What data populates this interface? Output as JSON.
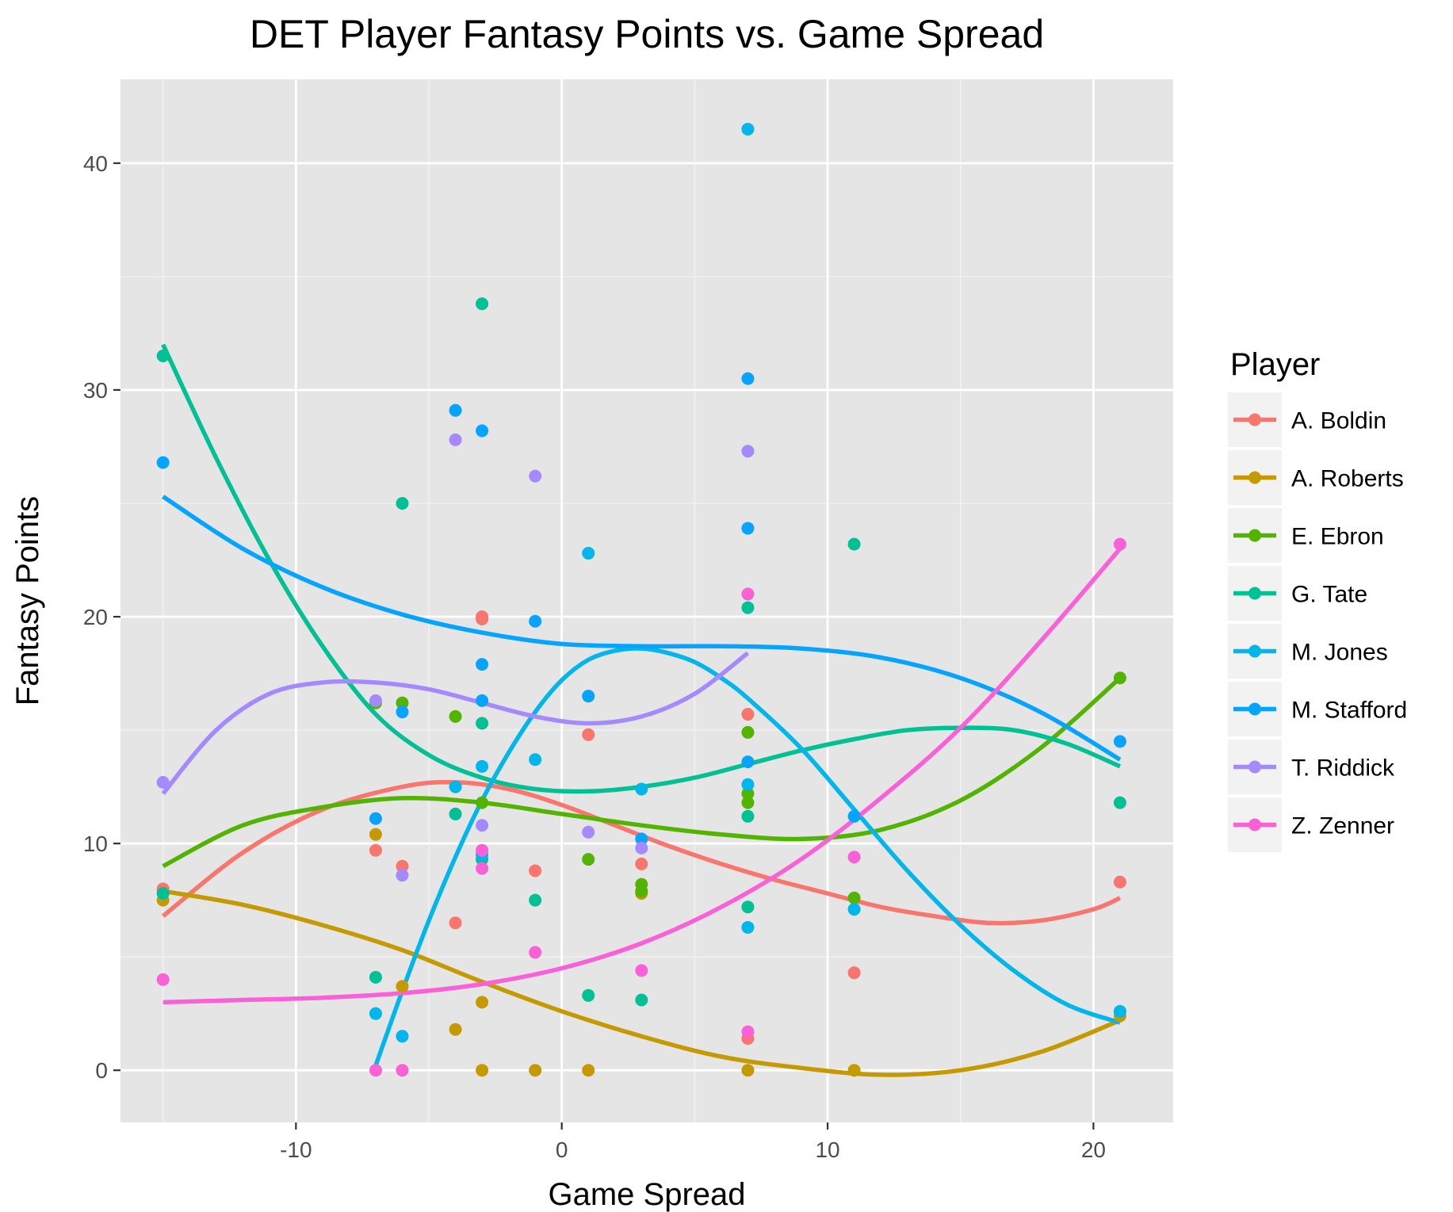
{
  "chart_data": {
    "type": "scatter",
    "title": "DET Player Fantasy Points vs. Game Spread",
    "xlabel": "Game Spread",
    "ylabel": "Fantasy Points",
    "xlim": [
      -16.6,
      23
    ],
    "ylim": [
      -2.3,
      43.7
    ],
    "x_ticks": [
      -10,
      0,
      10,
      20
    ],
    "y_ticks": [
      0,
      10,
      20,
      30,
      40
    ],
    "x_tick_labels": [
      "-10",
      "0",
      "10",
      "20"
    ],
    "y_tick_labels": [
      "0",
      "10",
      "20",
      "30",
      "40"
    ],
    "grid": true,
    "panel_background": "#E5E5E5",
    "legend": {
      "title": "Player",
      "position": "right"
    },
    "series": [
      {
        "name": "A. Boldin",
        "color": "#F8766D",
        "points": [
          [
            -15,
            8.0
          ],
          [
            -7,
            9.7
          ],
          [
            -6,
            9.0
          ],
          [
            -4,
            6.5
          ],
          [
            -3,
            20.0
          ],
          [
            -3,
            19.9
          ],
          [
            -1,
            8.8
          ],
          [
            1,
            14.8
          ],
          [
            3,
            9.1
          ],
          [
            7,
            15.7
          ],
          [
            7,
            1.4
          ],
          [
            11,
            4.3
          ],
          [
            21,
            8.3
          ]
        ],
        "trend": [
          [
            -15,
            6.8
          ],
          [
            -12,
            9.6
          ],
          [
            -9,
            11.5
          ],
          [
            -6,
            12.5
          ],
          [
            -4,
            12.7
          ],
          [
            -2,
            12.4
          ],
          [
            0,
            11.7
          ],
          [
            2,
            10.8
          ],
          [
            4,
            9.9
          ],
          [
            6,
            9.1
          ],
          [
            8,
            8.4
          ],
          [
            10,
            7.8
          ],
          [
            12,
            7.2
          ],
          [
            14,
            6.8
          ],
          [
            16,
            6.5
          ],
          [
            18,
            6.6
          ],
          [
            20,
            7.1
          ],
          [
            21,
            7.6
          ]
        ]
      },
      {
        "name": "A. Roberts",
        "color": "#C49A00",
        "points": [
          [
            -15,
            7.5
          ],
          [
            -7,
            10.4
          ],
          [
            -6,
            3.7
          ],
          [
            -4,
            1.8
          ],
          [
            -3,
            3.0
          ],
          [
            -3,
            0.0
          ],
          [
            -1,
            0.0
          ],
          [
            1,
            0.0
          ],
          [
            3,
            7.8
          ],
          [
            7,
            0.0
          ],
          [
            11,
            0.0
          ],
          [
            21,
            2.4
          ]
        ],
        "trend": [
          [
            -15,
            7.9
          ],
          [
            -12,
            7.3
          ],
          [
            -9,
            6.4
          ],
          [
            -6,
            5.3
          ],
          [
            -3,
            3.9
          ],
          [
            0,
            2.6
          ],
          [
            3,
            1.5
          ],
          [
            6,
            0.6
          ],
          [
            9,
            0.1
          ],
          [
            12,
            -0.2
          ],
          [
            15,
            0.0
          ],
          [
            18,
            0.8
          ],
          [
            21,
            2.2
          ]
        ]
      },
      {
        "name": "E. Ebron",
        "color": "#53B400",
        "points": [
          [
            -7,
            16.2
          ],
          [
            -6,
            16.2
          ],
          [
            -4,
            15.6
          ],
          [
            -3,
            11.8
          ],
          [
            1,
            9.3
          ],
          [
            3,
            8.2
          ],
          [
            3,
            7.9
          ],
          [
            7,
            14.9
          ],
          [
            7,
            12.2
          ],
          [
            7,
            11.8
          ],
          [
            11,
            7.6
          ],
          [
            21,
            17.3
          ]
        ],
        "trend": [
          [
            -15,
            9.0
          ],
          [
            -12,
            10.8
          ],
          [
            -9,
            11.6
          ],
          [
            -6,
            12.0
          ],
          [
            -3,
            11.8
          ],
          [
            0,
            11.3
          ],
          [
            3,
            10.8
          ],
          [
            6,
            10.4
          ],
          [
            9,
            10.2
          ],
          [
            12,
            10.6
          ],
          [
            15,
            11.9
          ],
          [
            18,
            14.2
          ],
          [
            21,
            17.3
          ]
        ]
      },
      {
        "name": "G. Tate",
        "color": "#00C094",
        "points": [
          [
            -15,
            31.5
          ],
          [
            -15,
            7.8
          ],
          [
            -7,
            4.1
          ],
          [
            -6,
            25.0
          ],
          [
            -4,
            11.3
          ],
          [
            -3,
            33.8
          ],
          [
            -3,
            15.3
          ],
          [
            -3,
            9.3
          ],
          [
            -1,
            7.5
          ],
          [
            1,
            3.3
          ],
          [
            3,
            3.1
          ],
          [
            7,
            20.4
          ],
          [
            7,
            11.2
          ],
          [
            7,
            7.2
          ],
          [
            11,
            23.2
          ],
          [
            21,
            11.8
          ]
        ],
        "trend": [
          [
            -15,
            32.0
          ],
          [
            -13,
            27.0
          ],
          [
            -11,
            22.5
          ],
          [
            -9,
            18.7
          ],
          [
            -7,
            15.7
          ],
          [
            -5,
            13.9
          ],
          [
            -3,
            12.9
          ],
          [
            -1,
            12.4
          ],
          [
            1,
            12.3
          ],
          [
            3,
            12.5
          ],
          [
            5,
            12.9
          ],
          [
            7,
            13.5
          ],
          [
            9,
            14.1
          ],
          [
            11,
            14.6
          ],
          [
            13,
            15.0
          ],
          [
            15,
            15.1
          ],
          [
            17,
            15.0
          ],
          [
            19,
            14.4
          ],
          [
            21,
            13.4
          ]
        ]
      },
      {
        "name": "M. Jones",
        "color": "#00B6EB",
        "points": [
          [
            -7,
            2.5
          ],
          [
            -6,
            1.5
          ],
          [
            -4,
            12.5
          ],
          [
            -3,
            13.4
          ],
          [
            -3,
            9.5
          ],
          [
            -1,
            13.7
          ],
          [
            1,
            22.8
          ],
          [
            3,
            12.4
          ],
          [
            7,
            41.5
          ],
          [
            7,
            12.6
          ],
          [
            7,
            6.3
          ],
          [
            11,
            7.1
          ],
          [
            21,
            2.6
          ]
        ],
        "trend": [
          [
            -7,
            0.2
          ],
          [
            -6,
            3.5
          ],
          [
            -5,
            6.6
          ],
          [
            -4,
            9.4
          ],
          [
            -3,
            11.9
          ],
          [
            -2,
            14.0
          ],
          [
            -1,
            15.8
          ],
          [
            0,
            17.2
          ],
          [
            1,
            18.1
          ],
          [
            2,
            18.5
          ],
          [
            3,
            18.6
          ],
          [
            4,
            18.4
          ],
          [
            5,
            18.0
          ],
          [
            6,
            17.3
          ],
          [
            7,
            16.4
          ],
          [
            9,
            14.2
          ],
          [
            11,
            11.5
          ],
          [
            13,
            8.8
          ],
          [
            15,
            6.4
          ],
          [
            17,
            4.4
          ],
          [
            19,
            2.9
          ],
          [
            21,
            2.1
          ]
        ]
      },
      {
        "name": "M. Stafford",
        "color": "#06A4FF",
        "points": [
          [
            -15,
            26.8
          ],
          [
            -7,
            11.1
          ],
          [
            -6,
            15.8
          ],
          [
            -4,
            29.1
          ],
          [
            -3,
            28.2
          ],
          [
            -3,
            17.9
          ],
          [
            -3,
            16.3
          ],
          [
            -1,
            19.8
          ],
          [
            1,
            16.5
          ],
          [
            3,
            10.2
          ],
          [
            7,
            30.5
          ],
          [
            7,
            23.9
          ],
          [
            7,
            13.6
          ],
          [
            11,
            11.2
          ],
          [
            21,
            14.5
          ]
        ],
        "trend": [
          [
            -15,
            25.3
          ],
          [
            -12,
            23.0
          ],
          [
            -9,
            21.3
          ],
          [
            -6,
            20.1
          ],
          [
            -3,
            19.3
          ],
          [
            0,
            18.8
          ],
          [
            3,
            18.7
          ],
          [
            6,
            18.7
          ],
          [
            9,
            18.6
          ],
          [
            12,
            18.2
          ],
          [
            15,
            17.3
          ],
          [
            18,
            15.8
          ],
          [
            21,
            13.7
          ]
        ]
      },
      {
        "name": "T. Riddick",
        "color": "#A58AFF",
        "points": [
          [
            -15,
            12.7
          ],
          [
            -7,
            16.3
          ],
          [
            -6,
            8.6
          ],
          [
            -4,
            27.8
          ],
          [
            -3,
            10.8
          ],
          [
            -1,
            26.2
          ],
          [
            1,
            10.5
          ],
          [
            3,
            9.8
          ],
          [
            7,
            27.3
          ]
        ],
        "trend": [
          [
            -15,
            12.2
          ],
          [
            -13,
            15.0
          ],
          [
            -11,
            16.6
          ],
          [
            -9,
            17.1
          ],
          [
            -7,
            17.1
          ],
          [
            -5,
            16.8
          ],
          [
            -3,
            16.2
          ],
          [
            -1,
            15.6
          ],
          [
            1,
            15.3
          ],
          [
            3,
            15.6
          ],
          [
            5,
            16.6
          ],
          [
            7,
            18.4
          ]
        ]
      },
      {
        "name": "Z. Zenner",
        "color": "#FB61D7",
        "points": [
          [
            -15,
            4.0
          ],
          [
            -7,
            0.0
          ],
          [
            -6,
            0.0
          ],
          [
            -3,
            9.7
          ],
          [
            -3,
            8.9
          ],
          [
            -1,
            5.2
          ],
          [
            3,
            4.4
          ],
          [
            7,
            21.0
          ],
          [
            7,
            1.7
          ],
          [
            11,
            9.4
          ],
          [
            21,
            23.2
          ]
        ],
        "trend": [
          [
            -15,
            3.0
          ],
          [
            -12,
            3.1
          ],
          [
            -9,
            3.2
          ],
          [
            -6,
            3.4
          ],
          [
            -3,
            3.8
          ],
          [
            0,
            4.5
          ],
          [
            3,
            5.6
          ],
          [
            6,
            7.2
          ],
          [
            9,
            9.3
          ],
          [
            12,
            12.0
          ],
          [
            15,
            15.1
          ],
          [
            18,
            18.9
          ],
          [
            21,
            23.0
          ]
        ]
      }
    ]
  }
}
